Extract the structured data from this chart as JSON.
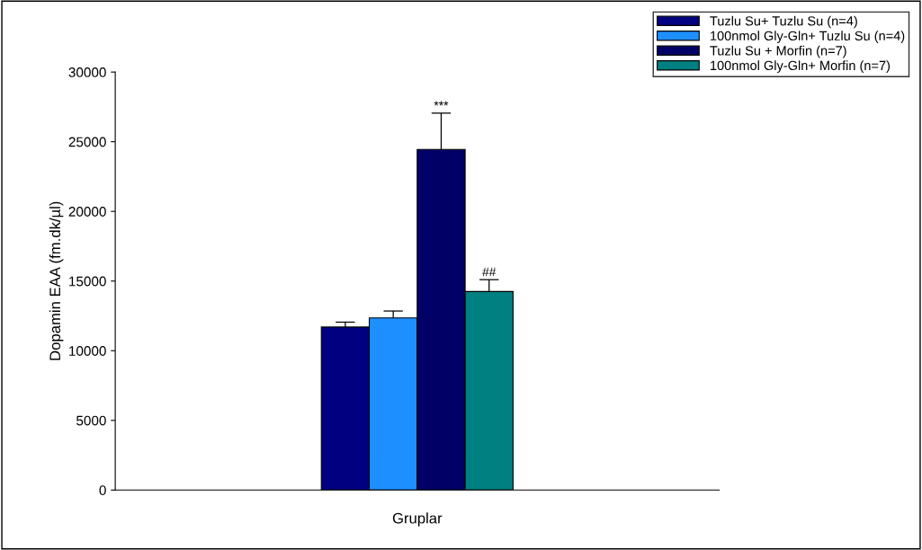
{
  "chart_data": {
    "type": "bar",
    "ylabel": "Dopamin EAA (fm.dk/µl)",
    "xlabel": "Gruplar",
    "categories": [
      null
    ],
    "series": [
      {
        "name": "Tuzlu Su+ Tuzlu Su (n=4)",
        "color": "#000080",
        "values": [
          11700
        ],
        "errors": [
          [
            11700,
            12050
          ]
        ]
      },
      {
        "name": "100nmol Gly-Gln+ Tuzlu Su (n=4)",
        "color": "#1e8fff",
        "values": [
          12350
        ],
        "errors": [
          [
            12350,
            12850
          ]
        ]
      },
      {
        "name": "Tuzlu Su + Morfin (n=7)",
        "color": "#000066",
        "values": [
          24450
        ],
        "errors": [
          [
            24450,
            27050
          ]
        ]
      },
      {
        "name": "100nmol Gly-Gln+ Morfin (n=7)",
        "color": "#008080",
        "values": [
          14250
        ],
        "errors": [
          [
            14250,
            15100
          ]
        ]
      }
    ],
    "annotations": [
      {
        "text": "***",
        "y": 27050
      },
      {
        "text": "##",
        "y": 15100
      }
    ],
    "ylim": [
      0,
      30000
    ],
    "yticks": [
      0,
      5000,
      10000,
      15000,
      20000,
      25000,
      30000
    ],
    "legend": "top right",
    "tick_labels": "y"
  }
}
